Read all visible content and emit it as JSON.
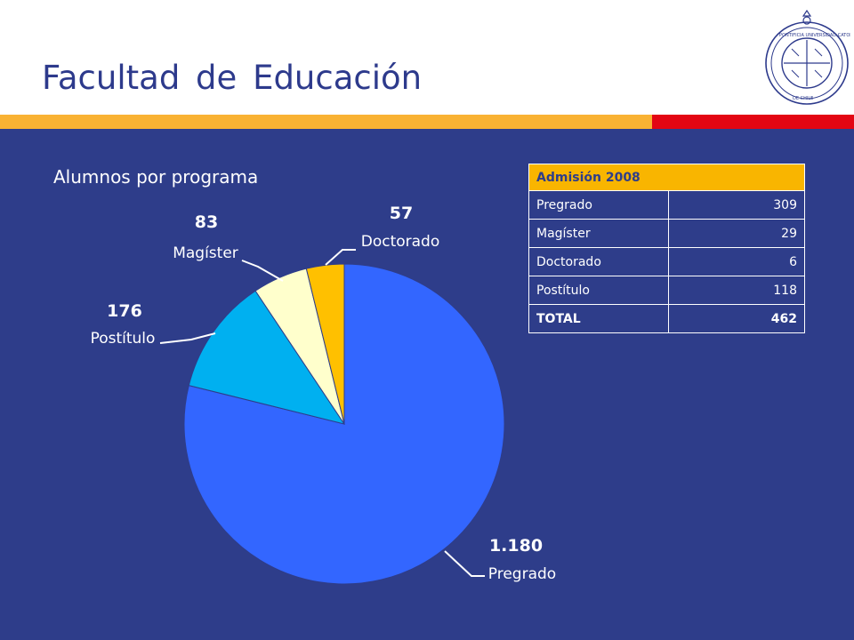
{
  "slide": {
    "title": "Facultad de Educación",
    "subtitle": "Alumnos por programa"
  },
  "colors": {
    "background": "#2e3d8a",
    "title": "#2d3a8c",
    "bar_yellow": "#f9b233",
    "bar_red": "#e30613",
    "table_header": "#f9b500"
  },
  "table": {
    "header": "Admisión 2008",
    "rows": [
      {
        "label": "Pregrado",
        "value": "309"
      },
      {
        "label": "Magíster",
        "value": "29"
      },
      {
        "label": "Doctorado",
        "value": "6"
      },
      {
        "label": "Postítulo",
        "value": "118"
      }
    ],
    "total": {
      "label": "TOTAL",
      "value": "462"
    }
  },
  "chart_data": {
    "type": "pie",
    "title": "Alumnos por programa",
    "slices": [
      {
        "label": "Pregrado",
        "value": 1180,
        "value_label": "1.180",
        "color": "#3366ff"
      },
      {
        "label": "Postítulo",
        "value": 176,
        "value_label": "176",
        "color": "#00b0f0"
      },
      {
        "label": "Magíster",
        "value": 83,
        "value_label": "83",
        "color": "#ffffcc"
      },
      {
        "label": "Doctorado",
        "value": 57,
        "value_label": "57",
        "color": "#ffc000"
      }
    ],
    "legend": "none"
  }
}
